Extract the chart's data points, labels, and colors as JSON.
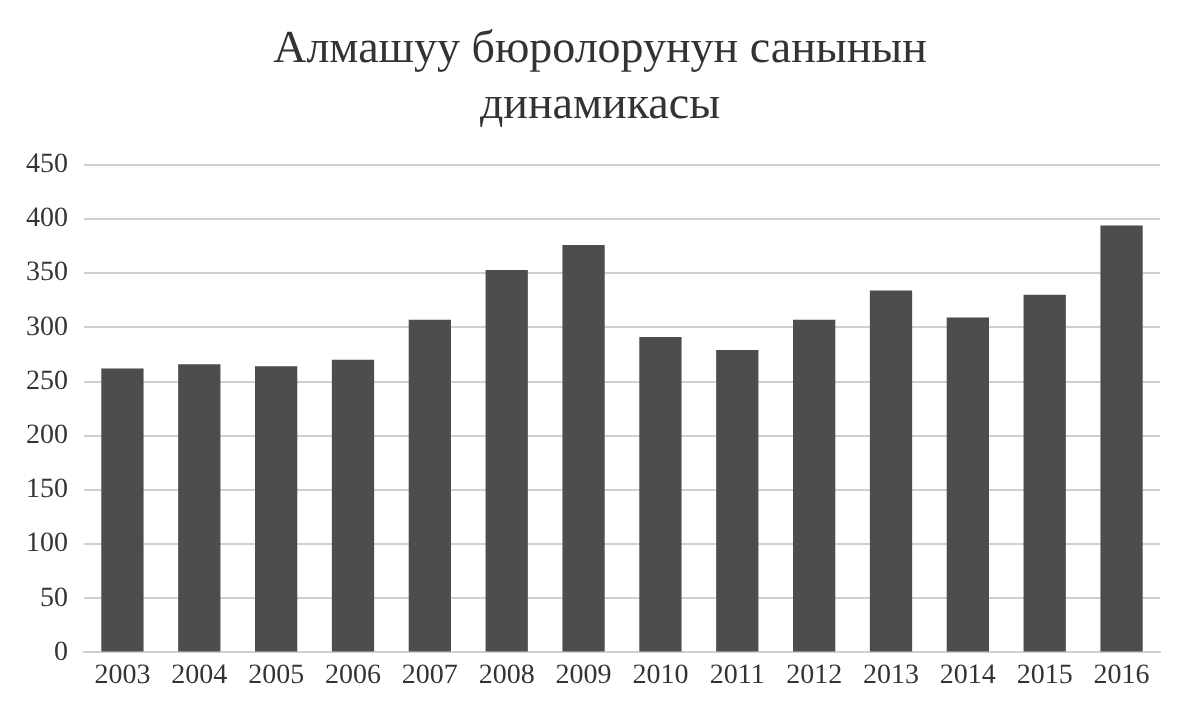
{
  "chart_data": {
    "type": "bar",
    "title": "Алмашуу бюролорунун санынын динамикасы",
    "categories": [
      "2003",
      "2004",
      "2005",
      "2006",
      "2007",
      "2008",
      "2009",
      "2010",
      "2011",
      "2012",
      "2013",
      "2014",
      "2015",
      "2016"
    ],
    "values": [
      262,
      266,
      264,
      270,
      307,
      353,
      376,
      291,
      279,
      307,
      334,
      309,
      330,
      394
    ],
    "color": "#4d4d4d",
    "ylim": [
      0,
      450
    ],
    "yticks": [
      0,
      50,
      100,
      150,
      200,
      250,
      300,
      350,
      400,
      450
    ],
    "grid": "y"
  }
}
